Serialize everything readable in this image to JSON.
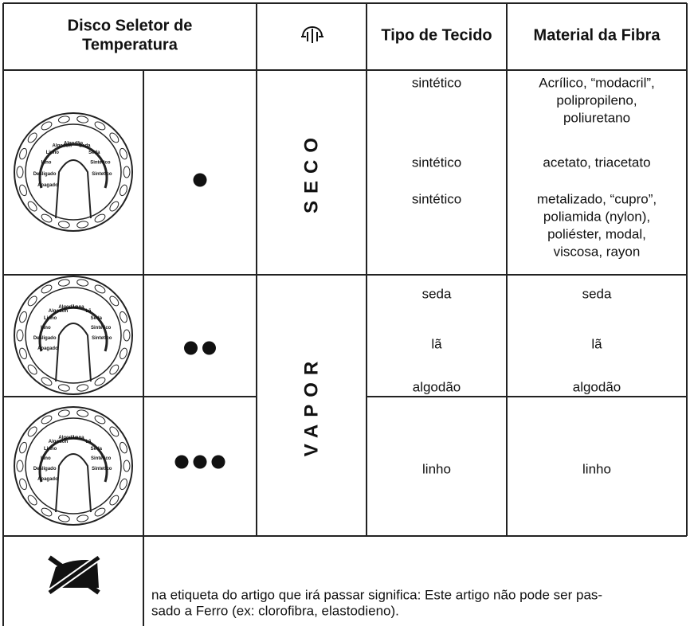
{
  "header": {
    "dial": [
      "Disco Seletor de",
      "Temperatura"
    ],
    "tipo": "Tipo de Tecido",
    "material": "Material da Fibra"
  },
  "sections": [
    {
      "mode": "SECO",
      "rows": [
        {
          "dots": 1,
          "dial": [
            "Apagado",
            "Desligado",
            "Lino",
            "Linho",
            "Algodon",
            "Algodão",
            "Seda",
            "Seda",
            "Sintético",
            "Sintetico"
          ],
          "entries": [
            {
              "tipo": [
                "sintético"
              ],
              "material": [
                "Acrílico, “modacril”,",
                "polipropileno,",
                "poliuretano"
              ]
            },
            {
              "tipo": [
                "sintético"
              ],
              "material": [
                "acetato, triacetato"
              ]
            },
            {
              "tipo": [
                "sintético"
              ],
              "material": [
                "metalizado, “cupro”,",
                "poliamida (nylon),",
                "poliéster, modal,",
                "viscosa, rayon"
              ]
            }
          ]
        }
      ]
    },
    {
      "mode": "VAPOR",
      "rows": [
        {
          "dots": 2,
          "dial": [
            "Apagado",
            "Desligado",
            "Lino",
            "Linho",
            "Algodon",
            "Algodão",
            "Lana",
            "Lã",
            "Seda",
            "Sintético",
            "Sintetico"
          ],
          "entries": [
            {
              "tipo": [
                "seda"
              ],
              "material": [
                "seda"
              ]
            },
            {
              "tipo": [
                "lã"
              ],
              "material": [
                "lã"
              ]
            },
            {
              "tipo": [
                "algodão"
              ],
              "material": [
                "algodão"
              ]
            }
          ]
        },
        {
          "dots": 3,
          "dial": [
            "Apagado",
            "Desligado",
            "Lino",
            "Linho",
            "Algodon",
            "Algodão",
            "Lana",
            "Lã",
            "Seda",
            "Sintético",
            "Sintetico"
          ],
          "entries": [
            {
              "tipo": [
                "linho"
              ],
              "material": [
                "linho"
              ]
            }
          ]
        }
      ]
    }
  ],
  "note": {
    "lines": [
      "na etiqueta do artigo que irá passar significa: Este artigo não pode ser pas-",
      "sado a Ferro (ex: clorofibra, elastodieno)."
    ]
  }
}
